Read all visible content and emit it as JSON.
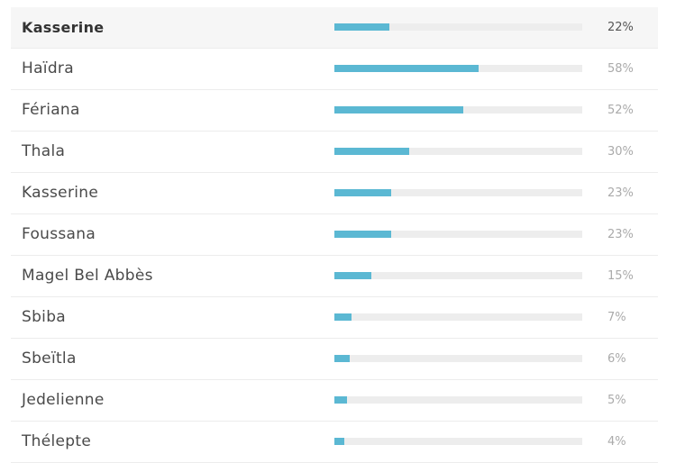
{
  "chart_data": {
    "type": "bar",
    "orientation": "horizontal",
    "xlim": [
      0,
      100
    ],
    "rows": [
      {
        "name": "Kasserine",
        "percent_label": "22%",
        "value": 22,
        "highlight": true
      },
      {
        "name": "Haïdra",
        "percent_label": "58%",
        "value": 58,
        "highlight": false
      },
      {
        "name": "Fériana",
        "percent_label": "52%",
        "value": 52,
        "highlight": false
      },
      {
        "name": "Thala",
        "percent_label": "30%",
        "value": 30,
        "highlight": false
      },
      {
        "name": "Kasserine",
        "percent_label": "23%",
        "value": 23,
        "highlight": false
      },
      {
        "name": "Foussana",
        "percent_label": "23%",
        "value": 23,
        "highlight": false
      },
      {
        "name": "Magel Bel Abbès",
        "percent_label": "15%",
        "value": 15,
        "highlight": false
      },
      {
        "name": "Sbiba",
        "percent_label": "7%",
        "value": 7,
        "highlight": false
      },
      {
        "name": "Sbeïtla",
        "percent_label": "6%",
        "value": 6,
        "highlight": false
      },
      {
        "name": "Jedelienne",
        "percent_label": "5%",
        "value": 5,
        "highlight": false
      },
      {
        "name": "Thélepte",
        "percent_label": "4%",
        "value": 4,
        "highlight": false
      }
    ]
  },
  "colors": {
    "bar_fill": "#5bb8d3",
    "bar_track": "#ededed",
    "highlight_row_background": "#f6f6f6"
  }
}
